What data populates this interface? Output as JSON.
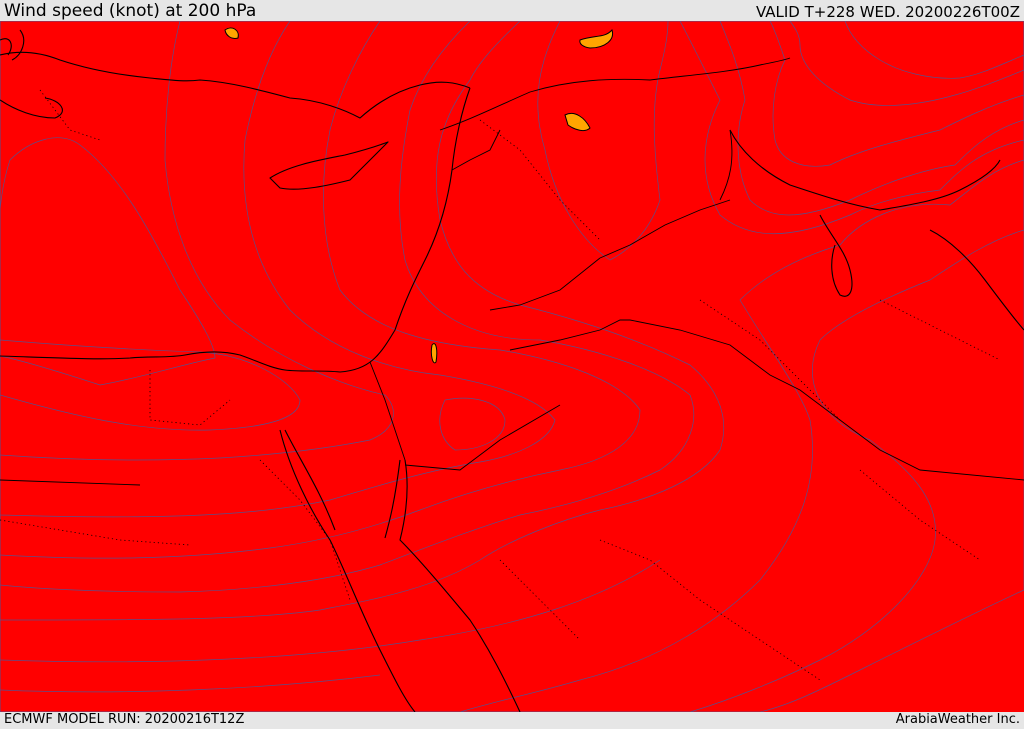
{
  "header": {
    "title": "Wind speed (knot) at 200 hPa",
    "valid": "VALID T+228 WED. 20200226T00Z"
  },
  "footer": {
    "model_run": "ECMWF MODEL RUN: 20200216T12Z",
    "provider": "ArabiaWeather Inc."
  },
  "map": {
    "field": "wind speed at 200 hPa",
    "colors": {
      "band_0": "#ffffff",
      "band_1": "#ffdead",
      "band_2": "#ffff00",
      "band_3": "#ffd700",
      "band_4": "#ffbf00",
      "band_5": "#ffa500",
      "band_6": "#ff8c00",
      "band_7": "#ff6a00",
      "band_8": "#ff4500",
      "band_9": "#ff2600",
      "band_10": "#ff0000",
      "contour_line": "#5a4f8a",
      "coastline": "#000000"
    },
    "features": [
      "coastlines",
      "country-borders",
      "admin-boundaries",
      "isotachs"
    ]
  }
}
